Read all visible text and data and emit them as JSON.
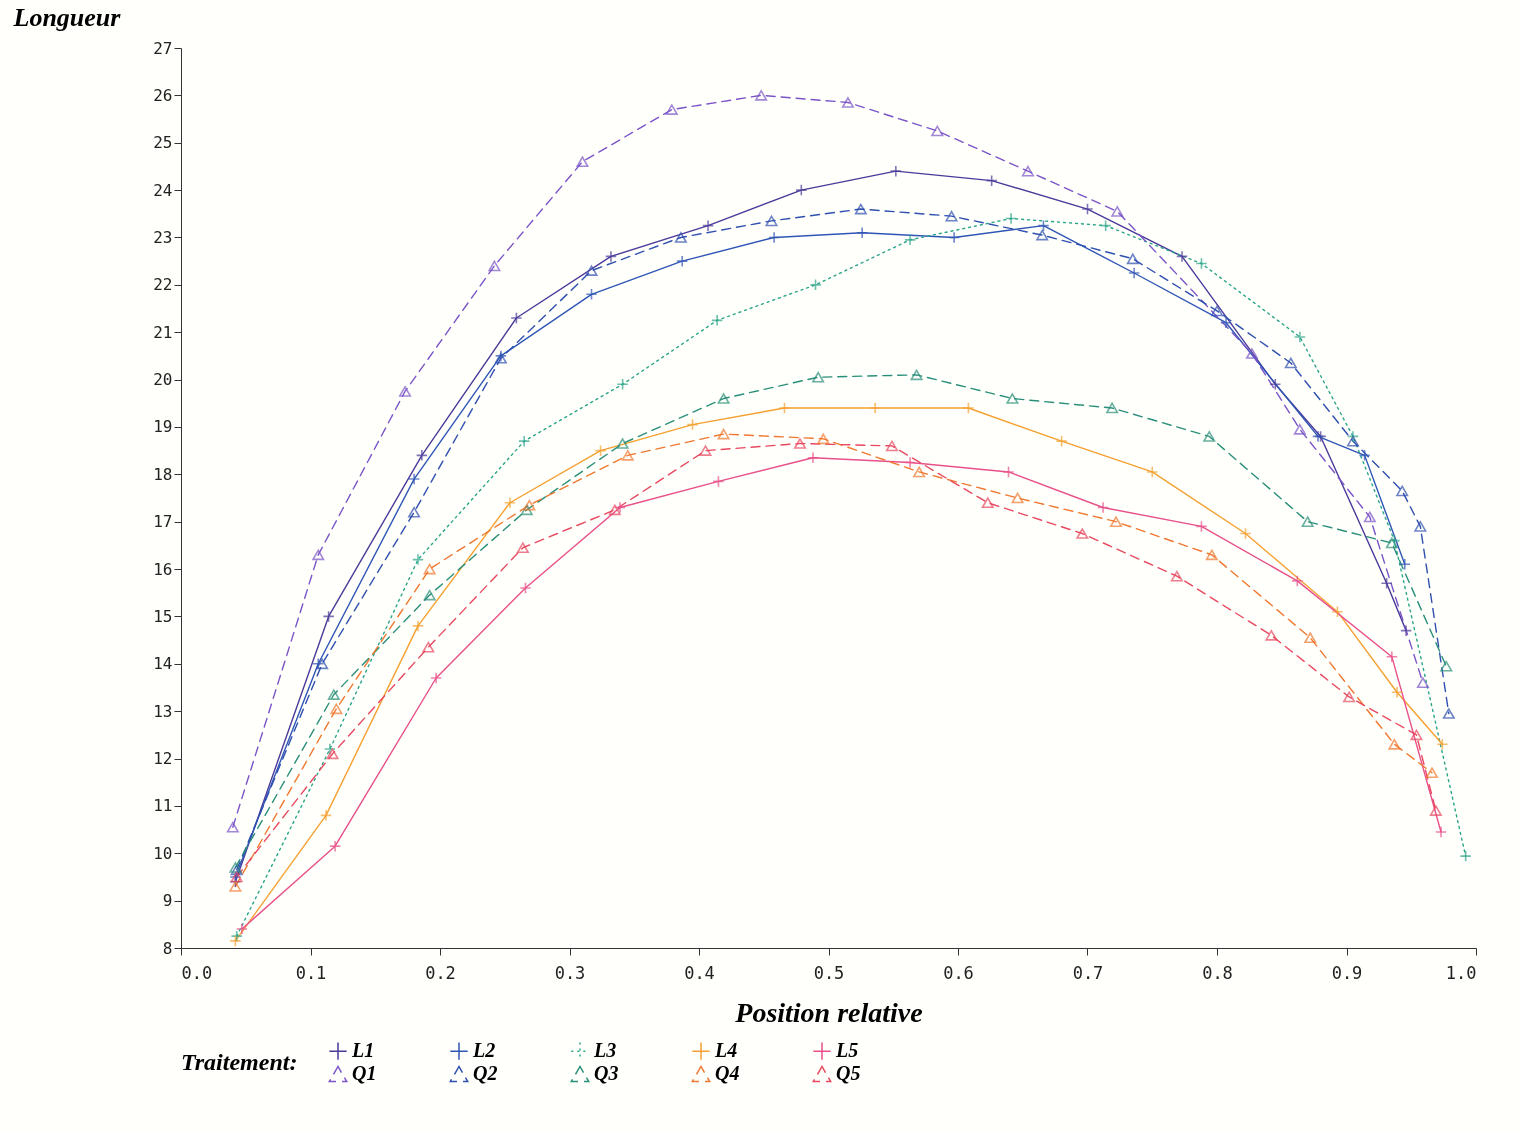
{
  "chart_data": {
    "type": "line",
    "xlabel": "Position relative",
    "ylabel": "Longueur",
    "legend_title": "Traitement:",
    "xlim": [
      0,
      1
    ],
    "xticks": [
      {
        "value": 0,
        "label": "0.0"
      },
      {
        "value": 0.1,
        "label": "0.1"
      },
      {
        "value": 0.2,
        "label": "0.2"
      },
      {
        "value": 0.3,
        "label": "0.3"
      },
      {
        "value": 0.4,
        "label": "0.4"
      },
      {
        "value": 0.5,
        "label": "0.5"
      },
      {
        "value": 0.6,
        "label": "0.6"
      },
      {
        "value": 0.7,
        "label": "0.7"
      },
      {
        "value": 0.8,
        "label": "0.8"
      },
      {
        "value": 0.9,
        "label": "0.9"
      },
      {
        "value": 1,
        "label": "1.0"
      }
    ],
    "ylim": [
      8,
      27
    ],
    "yticks": [
      8,
      9,
      10,
      11,
      12,
      13,
      14,
      15,
      16,
      17,
      18,
      19,
      20,
      21,
      22,
      23,
      24,
      25,
      26,
      27
    ],
    "grid": false,
    "legend": "bottom",
    "series": [
      {
        "name": "L1",
        "color": "#4b3a9a",
        "marker": "cross",
        "line_style": "solid",
        "x": [
          0.042,
          0.114,
          0.186,
          0.259,
          0.332,
          0.407,
          0.479,
          0.552,
          0.626,
          0.7,
          0.773,
          0.845,
          0.88,
          0.931,
          0.946
        ],
        "values": [
          9.4,
          15.0,
          18.4,
          21.3,
          22.6,
          23.25,
          24.0,
          24.4,
          24.2,
          23.6,
          22.6,
          19.9,
          18.8,
          15.7,
          14.7
        ]
      },
      {
        "name": "L2",
        "color": "#2f55b5",
        "marker": "cross",
        "line_style": "solid",
        "x": [
          0.042,
          0.106,
          0.18,
          0.247,
          0.317,
          0.387,
          0.458,
          0.526,
          0.597,
          0.666,
          0.736,
          0.807,
          0.878,
          0.914,
          0.945
        ],
        "values": [
          9.5,
          14.0,
          17.9,
          20.5,
          21.8,
          22.5,
          23.0,
          23.1,
          23.0,
          23.25,
          22.25,
          21.2,
          18.8,
          18.4,
          16.1
        ]
      },
      {
        "name": "L3",
        "color": "#2aa58a",
        "marker": "cross",
        "line_style": "dotted",
        "x": [
          0.043,
          0.115,
          0.183,
          0.265,
          0.341,
          0.414,
          0.49,
          0.563,
          0.641,
          0.714,
          0.788,
          0.864,
          0.905,
          0.937,
          0.992
        ],
        "values": [
          8.25,
          12.2,
          16.2,
          18.7,
          19.9,
          21.25,
          22.0,
          22.95,
          23.4,
          23.25,
          22.45,
          20.9,
          18.8,
          16.6,
          9.94
        ]
      },
      {
        "name": "L4",
        "color": "#f5a030",
        "marker": "cross",
        "line_style": "solid",
        "x": [
          0.042,
          0.112,
          0.183,
          0.254,
          0.324,
          0.395,
          0.466,
          0.536,
          0.608,
          0.68,
          0.75,
          0.822,
          0.893,
          0.939,
          0.974
        ],
        "values": [
          8.15,
          10.8,
          14.8,
          17.4,
          18.5,
          19.05,
          19.4,
          19.4,
          19.4,
          18.7,
          18.05,
          16.75,
          15.1,
          13.4,
          12.3
        ]
      },
      {
        "name": "L5",
        "color": "#e8508a",
        "marker": "cross",
        "line_style": "solid",
        "x": [
          0.047,
          0.119,
          0.197,
          0.266,
          0.339,
          0.415,
          0.488,
          0.563,
          0.639,
          0.712,
          0.788,
          0.862,
          0.935,
          0.973
        ],
        "values": [
          8.4,
          10.15,
          13.7,
          15.6,
          17.3,
          17.85,
          18.35,
          18.25,
          18.05,
          17.3,
          16.9,
          15.75,
          14.15,
          10.45
        ]
      },
      {
        "name": "Q1",
        "color": "#7b55c8",
        "marker": "triangle",
        "line_style": "dashed",
        "x": [
          0.04,
          0.106,
          0.173,
          0.242,
          0.31,
          0.379,
          0.448,
          0.515,
          0.584,
          0.654,
          0.723,
          0.827,
          0.864,
          0.918,
          0.959
        ],
        "values": [
          10.55,
          16.3,
          19.75,
          22.4,
          24.6,
          25.7,
          26.0,
          25.85,
          25.25,
          24.4,
          23.55,
          20.55,
          18.95,
          17.1,
          13.6
        ]
      },
      {
        "name": "Q2",
        "color": "#3050b0",
        "marker": "triangle",
        "line_style": "dashed",
        "x": [
          0.043,
          0.109,
          0.18,
          0.247,
          0.317,
          0.386,
          0.456,
          0.525,
          0.595,
          0.665,
          0.735,
          0.8,
          0.857,
          0.905,
          0.943,
          0.957,
          0.979
        ],
        "values": [
          9.65,
          14.0,
          17.2,
          20.45,
          22.3,
          23.0,
          23.35,
          23.6,
          23.45,
          23.05,
          22.55,
          21.45,
          20.35,
          18.7,
          17.65,
          16.9,
          12.95
        ]
      },
      {
        "name": "Q3",
        "color": "#2a8f7a",
        "marker": "triangle",
        "line_style": "dashed",
        "x": [
          0.042,
          0.118,
          0.192,
          0.267,
          0.341,
          0.419,
          0.492,
          0.568,
          0.642,
          0.719,
          0.794,
          0.87,
          0.935,
          0.977
        ],
        "values": [
          9.7,
          13.35,
          15.45,
          17.25,
          18.65,
          19.6,
          20.05,
          20.1,
          19.6,
          19.4,
          18.8,
          17.0,
          16.55,
          13.95
        ]
      },
      {
        "name": "Q4",
        "color": "#f07830",
        "marker": "triangle",
        "line_style": "dashed",
        "x": [
          0.042,
          0.12,
          0.192,
          0.269,
          0.345,
          0.419,
          0.496,
          0.57,
          0.646,
          0.722,
          0.796,
          0.872,
          0.937,
          0.966
        ],
        "values": [
          9.3,
          13.05,
          16.0,
          17.35,
          18.4,
          18.85,
          18.75,
          18.05,
          17.5,
          17.0,
          16.3,
          14.55,
          12.3,
          11.7
        ]
      },
      {
        "name": "Q5",
        "color": "#e84860",
        "marker": "triangle",
        "line_style": "dashed",
        "x": [
          0.043,
          0.117,
          0.191,
          0.264,
          0.335,
          0.405,
          0.478,
          0.549,
          0.623,
          0.696,
          0.769,
          0.842,
          0.902,
          0.954,
          0.969
        ],
        "values": [
          9.5,
          12.1,
          14.35,
          16.45,
          17.25,
          18.5,
          18.65,
          18.6,
          17.4,
          16.75,
          15.85,
          14.6,
          13.3,
          12.5,
          10.9
        ]
      }
    ]
  }
}
